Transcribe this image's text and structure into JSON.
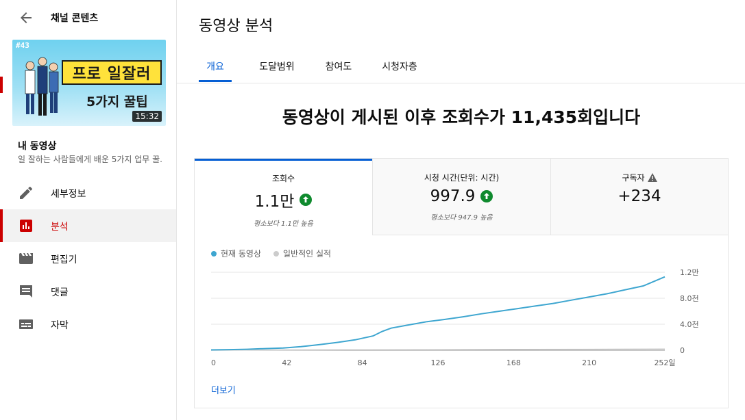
{
  "sidebar": {
    "title": "채널 콘텐츠",
    "thumbnail": {
      "episode": "#43",
      "headline": "프로 일잘러",
      "subline": "5가지 꿀팁",
      "duration": "15:32"
    },
    "video_title": "내 동영상",
    "video_desc": "일 잘하는 사람들에게 배운 5가지 업무 꿀...",
    "items": [
      {
        "label": "세부정보",
        "icon": "pencil-icon"
      },
      {
        "label": "분석",
        "icon": "analytics-icon",
        "active": true
      },
      {
        "label": "편집기",
        "icon": "clapper-icon"
      },
      {
        "label": "댓글",
        "icon": "comment-icon"
      },
      {
        "label": "자막",
        "icon": "subtitles-icon"
      }
    ]
  },
  "main": {
    "page_title": "동영상 분석",
    "tabs": [
      {
        "label": "개요",
        "active": true
      },
      {
        "label": "도달범위"
      },
      {
        "label": "참여도"
      },
      {
        "label": "시청자층"
      }
    ],
    "headline": "동영상이 게시된 이후 조회수가 11,435회입니다",
    "metrics": [
      {
        "label": "조회수",
        "value": "1.1만",
        "note": "평소보다 1.1만 높음",
        "trend": "up"
      },
      {
        "label": "시청 시간(단위: 시간)",
        "value": "997.9",
        "note": "평소보다 947.9 높음",
        "trend": "up"
      },
      {
        "label": "구독자",
        "value": "+234",
        "note": "",
        "trend": "warning"
      }
    ],
    "more_label": "더보기"
  },
  "chart_data": {
    "type": "line",
    "legend": [
      "현재 동영상",
      "일반적인 실적"
    ],
    "legend_placement": "top-left",
    "x_ticks": [
      "0",
      "42",
      "84",
      "126",
      "168",
      "210",
      "252일"
    ],
    "y_ticks": [
      "0",
      "4.0천",
      "8.0천",
      "1.2만"
    ],
    "ylim": [
      0,
      12000
    ],
    "xlim": [
      0,
      252
    ],
    "grid": true,
    "series": [
      {
        "name": "현재 동영상",
        "color": "#3ea6d0",
        "x": [
          0,
          10,
          20,
          30,
          40,
          50,
          60,
          70,
          80,
          90,
          95,
          100,
          110,
          120,
          130,
          140,
          150,
          160,
          170,
          180,
          190,
          200,
          210,
          220,
          230,
          240,
          252
        ],
        "y": [
          50,
          100,
          150,
          250,
          350,
          550,
          850,
          1200,
          1600,
          2200,
          2900,
          3400,
          3900,
          4400,
          4750,
          5150,
          5600,
          6000,
          6400,
          6800,
          7200,
          7700,
          8200,
          8700,
          9300,
          9900,
          11300
        ]
      },
      {
        "name": "일반적인 실적",
        "color": "#cccccc",
        "x": [
          0,
          42,
          84,
          126,
          168,
          210,
          252
        ],
        "y": [
          0,
          50,
          80,
          100,
          130,
          150,
          180
        ]
      }
    ]
  },
  "colors": {
    "accent": "#065fd4",
    "brand_red": "#cc0000",
    "trend_green": "#0f8a2e",
    "series_blue": "#3ea6d0"
  }
}
